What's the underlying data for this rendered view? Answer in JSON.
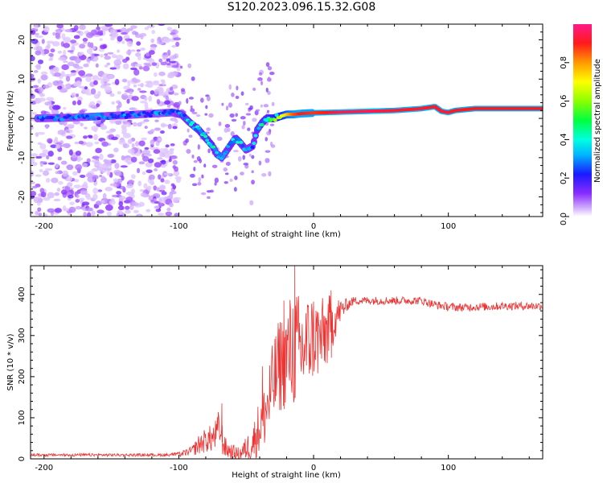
{
  "figure": {
    "title": "S120.2023.096.15.32.G08"
  },
  "chart_data": [
    {
      "type": "heatmap",
      "title": "S120.2023.096.15.32.G08",
      "xlabel": "Height of straight line (km)",
      "ylabel": "Frequency (Hz)",
      "xlim": [
        -210,
        170
      ],
      "ylim": [
        -25,
        24
      ],
      "x_ticks": [
        -200,
        -100,
        0,
        100
      ],
      "x_tick_labels": [
        "-200",
        "-100",
        "0",
        "100"
      ],
      "y_ticks": [
        -20,
        -10,
        0,
        10,
        20
      ],
      "y_tick_labels": [
        "-20",
        "-10",
        "0",
        "10",
        "20"
      ],
      "colorbar": {
        "label": "Normalized spectral amplitude",
        "range": [
          0,
          1
        ],
        "ticks": [
          0,
          0.2,
          0.4,
          0.6,
          0.8
        ],
        "tick_labels": [
          "0.0",
          "0.2",
          "0.4",
          "0.6",
          "0.8"
        ]
      },
      "ridge": {
        "x": [
          -205,
          -180,
          -160,
          -140,
          -120,
          -105,
          -98,
          -92,
          -85,
          -80,
          -75,
          -72,
          -68,
          -62,
          -58,
          -55,
          -50,
          -45,
          -42,
          -38,
          -35,
          -30,
          -25,
          -20,
          -15,
          -10,
          0,
          10,
          20,
          40,
          60,
          80,
          90,
          95,
          100,
          105,
          120,
          140,
          170
        ],
        "y": [
          0,
          0.2,
          0.5,
          0.8,
          1.2,
          1.5,
          1,
          -1,
          -3,
          -5,
          -7,
          -9,
          -10,
          -7,
          -5,
          -6,
          -8,
          -7,
          -3,
          -1,
          0,
          0,
          0.5,
          1,
          1,
          1.2,
          1.4,
          1.5,
          1.6,
          1.8,
          2,
          2.5,
          3,
          1.8,
          1.5,
          2,
          2.5,
          2.5,
          2.5
        ],
        "amplitude": [
          0.3,
          0.3,
          0.3,
          0.3,
          0.3,
          0.3,
          0.35,
          0.4,
          0.45,
          0.45,
          0.45,
          0.4,
          0.35,
          0.4,
          0.4,
          0.4,
          0.35,
          0.35,
          0.4,
          0.45,
          0.45,
          0.55,
          0.65,
          0.75,
          0.85,
          0.9,
          0.88,
          0.9,
          0.95,
          0.95,
          0.92,
          0.92,
          0.9,
          0.92,
          0.92,
          0.9,
          0.9,
          0.9,
          0.9
        ]
      },
      "noise_region_x": [
        -210,
        -100
      ]
    },
    {
      "type": "line",
      "xlabel": "Height of straight line (km)",
      "ylabel": "SNR (10 * v/v)",
      "xlim": [
        -210,
        170
      ],
      "ylim": [
        0,
        470
      ],
      "x_ticks": [
        -200,
        -100,
        0,
        100
      ],
      "x_tick_labels": [
        "-200",
        "-100",
        "0",
        "100"
      ],
      "y_ticks": [
        0,
        100,
        200,
        300,
        400
      ],
      "y_tick_labels": [
        "0",
        "100",
        "200",
        "300",
        "400"
      ],
      "series": [
        {
          "name": "SNR",
          "color": "#ee3333",
          "x": [
            -210,
            -190,
            -170,
            -150,
            -130,
            -110,
            -100,
            -95,
            -90,
            -85,
            -80,
            -75,
            -72,
            -70,
            -68,
            -65,
            -60,
            -55,
            -50,
            -45,
            -40,
            -35,
            -30,
            -25,
            -20,
            -15,
            -10,
            -5,
            0,
            5,
            10,
            15,
            20,
            25,
            30,
            40,
            50,
            60,
            70,
            80,
            90,
            100,
            110,
            120,
            130,
            140,
            150,
            160,
            170
          ],
          "y": [
            8,
            8,
            8,
            8,
            8,
            8,
            10,
            15,
            20,
            35,
            45,
            50,
            60,
            80,
            40,
            25,
            15,
            12,
            25,
            40,
            80,
            120,
            180,
            230,
            250,
            270,
            260,
            280,
            300,
            290,
            310,
            340,
            360,
            375,
            385,
            385,
            385,
            385,
            385,
            385,
            375,
            370,
            368,
            370,
            370,
            372,
            372,
            372,
            372
          ],
          "noise": [
            5,
            5,
            5,
            5,
            5,
            5,
            6,
            8,
            12,
            25,
            30,
            35,
            40,
            45,
            30,
            25,
            20,
            15,
            30,
            45,
            70,
            90,
            110,
            120,
            130,
            150,
            140,
            120,
            110,
            100,
            90,
            60,
            30,
            15,
            10,
            10,
            10,
            10,
            10,
            10,
            10,
            10,
            10,
            10,
            10,
            10,
            10,
            10,
            10
          ],
          "spikes": [
            {
              "x": -68,
              "y": 135
            },
            {
              "x": -14,
              "y": 470
            },
            {
              "x": 13,
              "y": 410
            },
            {
              "x": -22,
              "y": 385
            },
            {
              "x": -38,
              "y": 225
            }
          ]
        }
      ]
    }
  ]
}
